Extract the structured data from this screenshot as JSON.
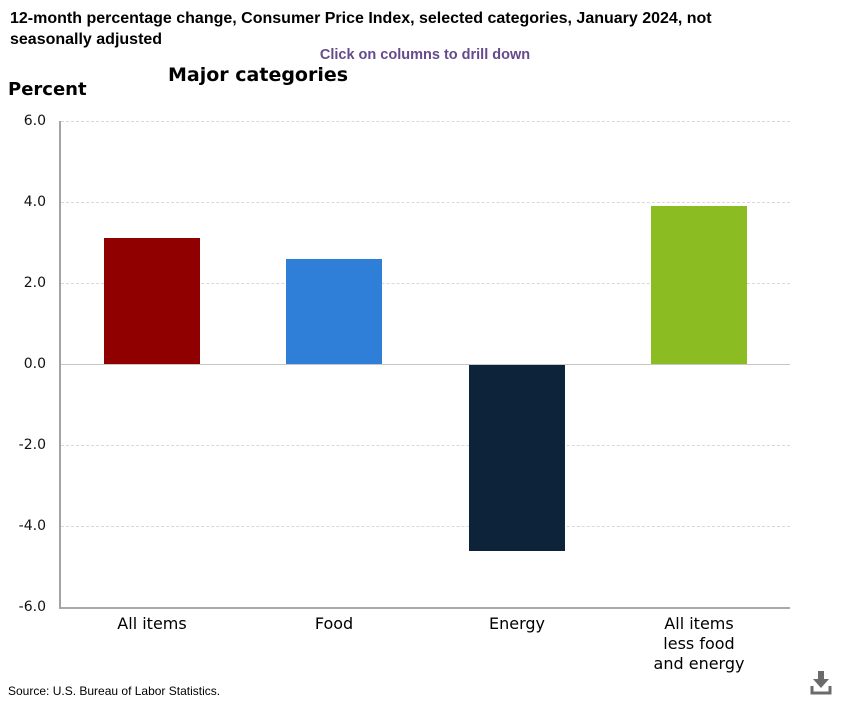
{
  "header": {
    "title": "12-month percentage change, Consumer Price Index, selected categories, January 2024, not seasonally adjusted",
    "subtitle": "Click on columns to drill down"
  },
  "chart": {
    "title": "Major categories",
    "y_axis_label": "Percent",
    "source": "Source: U.S. Bureau of Labor Statistics.",
    "download_icon": "download-icon",
    "colors": {
      "subtitle_purple": "#65498c",
      "gridline": "#d9d9d9",
      "zero_line": "#c6c6c6",
      "axis_line": "#a3a3a3",
      "icon_gray": "#6b6b6b"
    }
  },
  "chart_data": {
    "type": "bar",
    "title": "Major categories",
    "subtitle": "Click on columns to drill down",
    "categories": [
      "All items",
      "Food",
      "Energy",
      "All items less food and energy"
    ],
    "category_label_lines": [
      [
        "All items"
      ],
      [
        "Food"
      ],
      [
        "Energy"
      ],
      [
        "All items",
        "less food",
        "and energy"
      ]
    ],
    "values": [
      3.1,
      2.6,
      -4.6,
      3.9
    ],
    "bar_colors": [
      "#910000",
      "#2f7ed8",
      "#0d233a",
      "#8bbc21"
    ],
    "xlabel": "",
    "ylabel": "Percent",
    "ylim": [
      -6.0,
      6.0
    ],
    "yticks": [
      {
        "value": 6,
        "label": "6.0"
      },
      {
        "value": 4,
        "label": "4.0"
      },
      {
        "value": 2,
        "label": "2.0"
      },
      {
        "value": 0,
        "label": "0.0"
      },
      {
        "value": -2,
        "label": "-2.0"
      },
      {
        "value": -4,
        "label": "-4.0"
      },
      {
        "value": -6,
        "label": "-6.0"
      }
    ],
    "grid": "horizontal dashed",
    "legend": "none",
    "source": "Source: U.S. Bureau of Labor Statistics."
  }
}
